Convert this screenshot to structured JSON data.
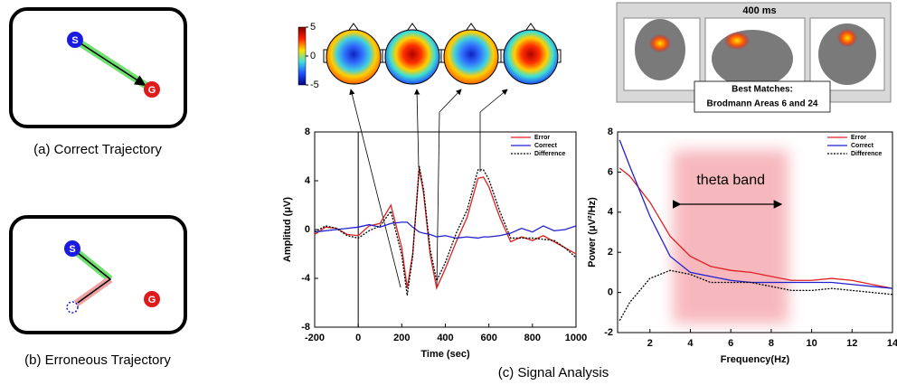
{
  "panels": [
    {
      "caption": "(a) Correct Trajectory",
      "start": "S",
      "goal": "G"
    },
    {
      "caption": "(b) Erroneous Trajectory",
      "start": "S",
      "goal": "G"
    }
  ],
  "figure_caption": "(c) Signal Analysis",
  "topomap": {
    "colorbar_ticks": [
      5,
      0,
      -5
    ],
    "clim": [
      -5,
      5
    ]
  },
  "source_localization": {
    "time": "400 ms",
    "match_title": "Best Matches:",
    "match": "Brodmann Areas 6 and 24"
  },
  "chart_data": [
    {
      "type": "line",
      "xlabel": "Time (sec)",
      "ylabel": "Amplitud (μV)",
      "x": [
        -200,
        -150,
        -100,
        -50,
        0,
        50,
        100,
        150,
        200,
        225,
        250,
        280,
        300,
        330,
        360,
        400,
        450,
        500,
        550,
        575,
        600,
        650,
        700,
        750,
        800,
        850,
        900,
        950,
        1000
      ],
      "xlim": [
        -200,
        1000
      ],
      "xticks": [
        -200,
        0,
        200,
        400,
        600,
        800,
        1000
      ],
      "ylim": [
        -8,
        8
      ],
      "yticks": [
        -8,
        -4,
        0,
        4,
        8
      ],
      "vlines": [
        0
      ],
      "series": [
        {
          "name": "Error",
          "color": "#e02020",
          "style": "solid",
          "values": [
            -0.4,
            0.2,
            0.1,
            -0.4,
            -0.5,
            0.3,
            0.5,
            2.0,
            -1.5,
            -4.8,
            -2.0,
            5.0,
            3.0,
            -2.0,
            -4.8,
            -3.2,
            -1.0,
            1.0,
            4.2,
            4.3,
            3.5,
            1.0,
            -1.0,
            -0.6,
            -0.9,
            -0.5,
            -1.0,
            -1.5,
            -2.0
          ]
        },
        {
          "name": "Correct",
          "color": "#2020d0",
          "style": "solid",
          "values": [
            -0.2,
            -0.1,
            0.0,
            0.1,
            0.2,
            0.4,
            0.2,
            0.5,
            0.6,
            0.6,
            0.2,
            -0.2,
            -0.3,
            -0.4,
            -0.6,
            -0.5,
            -0.7,
            -0.6,
            -0.7,
            -0.6,
            -0.6,
            -0.5,
            -0.3,
            0.1,
            -0.2,
            0.3,
            -0.1,
            0.0,
            0.3
          ]
        },
        {
          "name": "Difference",
          "color": "#000000",
          "style": "dotted",
          "values": [
            -0.2,
            0.3,
            0.1,
            -0.5,
            -0.7,
            -0.1,
            0.3,
            1.5,
            -2.1,
            -5.4,
            -2.2,
            5.2,
            3.3,
            -1.6,
            -4.2,
            -2.7,
            -0.3,
            1.6,
            4.9,
            4.9,
            4.1,
            1.5,
            -0.7,
            -0.7,
            -0.7,
            -0.8,
            -0.9,
            -1.5,
            -2.3
          ]
        }
      ]
    },
    {
      "type": "line",
      "xlabel": "Frequency(Hz)",
      "ylabel": "Power (μV²/Hz)",
      "x": [
        0.5,
        1,
        2,
        3,
        4,
        5,
        6,
        7,
        8,
        9,
        10,
        11,
        12,
        13,
        14
      ],
      "xlim": [
        0.4,
        14
      ],
      "xticks": [
        2,
        4,
        6,
        8,
        10,
        12,
        14
      ],
      "ylim": [
        -2,
        8
      ],
      "yticks": [
        -2,
        0,
        2,
        4,
        6,
        8
      ],
      "annotation": {
        "text": "theta band",
        "span": [
          3.5,
          8.5
        ]
      },
      "series": [
        {
          "name": "Error",
          "color": "#e02020",
          "style": "solid",
          "values": [
            6.2,
            5.8,
            4.5,
            2.8,
            1.8,
            1.3,
            1.1,
            1.0,
            0.8,
            0.6,
            0.6,
            0.7,
            0.6,
            0.4,
            0.2
          ]
        },
        {
          "name": "Correct",
          "color": "#2020d0",
          "style": "solid",
          "values": [
            7.6,
            6.3,
            3.8,
            1.8,
            1.0,
            0.8,
            0.6,
            0.5,
            0.5,
            0.5,
            0.5,
            0.5,
            0.4,
            0.3,
            0.2
          ]
        },
        {
          "name": "Difference",
          "color": "#000000",
          "style": "dotted",
          "values": [
            -1.4,
            -0.5,
            0.7,
            1.1,
            0.9,
            0.5,
            0.5,
            0.5,
            0.3,
            0.1,
            0.1,
            0.2,
            0.1,
            0.0,
            -0.1
          ]
        }
      ]
    }
  ]
}
